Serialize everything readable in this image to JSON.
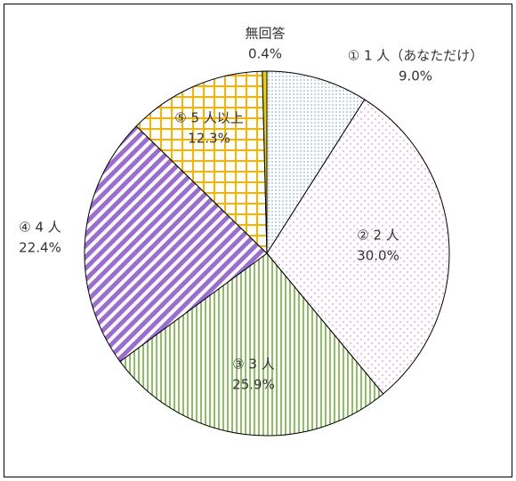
{
  "chart_data": {
    "type": "pie",
    "categories": [
      "① 1 人（あなただけ）",
      "② 2 人",
      "③ 3 人",
      "④ 4 人",
      "⑤ 5 人以上",
      "無回答"
    ],
    "values": [
      9.0,
      30.0,
      25.9,
      22.4,
      12.3,
      0.4
    ],
    "value_labels": [
      "9.0%",
      "30.0%",
      "25.9%",
      "22.4%",
      "12.3%",
      "0.4%"
    ],
    "colors": [
      "#8fb4de",
      "#f08ad8",
      "#8cc063",
      "#9b6cd6",
      "#f5b400",
      "#e8d000"
    ]
  }
}
